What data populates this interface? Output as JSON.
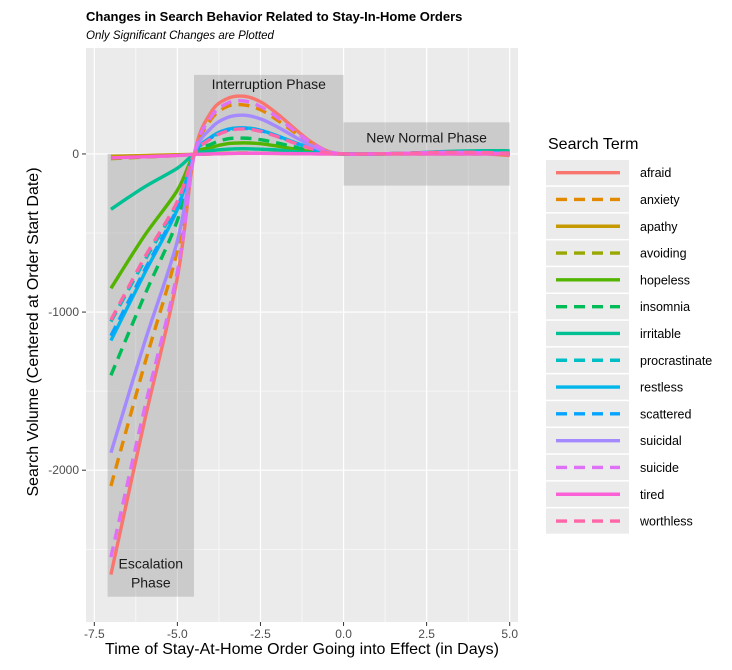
{
  "chart_data": {
    "type": "line",
    "title": "Changes in Search Behavior Related to Stay-In-Home Orders",
    "subtitle": "Only Significant Changes are Plotted",
    "xlabel": "Time of Stay-At-Home Order Going into Effect (in Days)",
    "ylabel": "Search Volume (Centered at Order Start Date)",
    "xlim": [
      -7.75,
      5.25
    ],
    "ylim": [
      -2960,
      670
    ],
    "x_ticks": [
      -7.5,
      -5.0,
      -2.5,
      0.0,
      2.5,
      5.0
    ],
    "x_tick_labels": [
      "-7.5",
      "-5.0",
      "-2.5",
      "0.0",
      "2.5",
      "5.0"
    ],
    "y_ticks": [
      -2000,
      -1000,
      0
    ],
    "y_tick_labels": [
      "-2000",
      "-1000",
      "0"
    ],
    "grid": true,
    "legend_title": "Search Term",
    "legend_position": "right",
    "phases": [
      {
        "label": "Escalation Phase",
        "label_lines": [
          "Escalation",
          "Phase"
        ],
        "x_range": [
          -7.1,
          -4.5
        ],
        "y_range": [
          -2800,
          0
        ]
      },
      {
        "label": "Interruption Phase",
        "label_lines": [
          "Interruption Phase"
        ],
        "x_range": [
          -4.5,
          0.0
        ],
        "y_range": [
          0,
          500
        ]
      },
      {
        "label": "New Normal Phase",
        "label_lines": [
          "New Normal Phase"
        ],
        "x_range": [
          0.0,
          5.0
        ],
        "y_range": [
          -200,
          200
        ]
      }
    ],
    "x": [
      -7,
      -6,
      -5,
      -4.5,
      -4,
      -3.5,
      -3,
      -2.5,
      -2,
      -1.5,
      -1,
      -0.5,
      0,
      1,
      2,
      3,
      4,
      5
    ],
    "series": [
      {
        "name": "afraid",
        "color": "#F8766D",
        "dash": "solid",
        "values": [
          -2660,
          -1700,
          -780,
          -10,
          260,
          350,
          365,
          330,
          255,
          165,
          80,
          20,
          0,
          0,
          5,
          10,
          5,
          -10
        ]
      },
      {
        "name": "anxiety",
        "color": "#E38900",
        "dash": "dashed",
        "values": [
          -2100,
          -1340,
          -610,
          -8,
          215,
          300,
          310,
          280,
          215,
          140,
          70,
          15,
          0,
          0,
          5,
          10,
          5,
          -5
        ]
      },
      {
        "name": "apathy",
        "color": "#C49A00",
        "dash": "solid",
        "values": [
          -15,
          -10,
          -5,
          -2,
          0,
          3,
          5,
          4,
          3,
          2,
          1,
          0,
          0,
          0,
          0,
          0,
          0,
          0
        ]
      },
      {
        "name": "avoiding",
        "color": "#99A800",
        "dash": "dashed",
        "values": [
          -30,
          -20,
          -10,
          -3,
          0,
          4,
          6,
          5,
          4,
          3,
          2,
          1,
          0,
          0,
          0,
          0,
          0,
          0
        ]
      },
      {
        "name": "hopeless",
        "color": "#53B400",
        "dash": "solid",
        "values": [
          -850,
          -520,
          -230,
          -5,
          40,
          65,
          70,
          65,
          50,
          32,
          15,
          4,
          0,
          0,
          5,
          10,
          5,
          0
        ]
      },
      {
        "name": "insomnia",
        "color": "#00BC56",
        "dash": "dashed",
        "values": [
          -1400,
          -900,
          -420,
          -8,
          60,
          95,
          100,
          90,
          70,
          45,
          22,
          5,
          0,
          0,
          5,
          10,
          5,
          0
        ]
      },
      {
        "name": "irritable",
        "color": "#00C094",
        "dash": "solid",
        "values": [
          -350,
          -210,
          -90,
          -3,
          20,
          30,
          33,
          30,
          25,
          15,
          8,
          2,
          0,
          0,
          5,
          15,
          20,
          20
        ]
      },
      {
        "name": "procrastinate",
        "color": "#00BFC4",
        "dash": "dashed",
        "values": [
          -1060,
          -680,
          -310,
          -6,
          100,
          150,
          165,
          150,
          115,
          75,
          38,
          9,
          0,
          0,
          5,
          10,
          10,
          5
        ]
      },
      {
        "name": "restless",
        "color": "#00B6EB",
        "dash": "solid",
        "values": [
          -1180,
          -760,
          -350,
          -6,
          105,
          155,
          165,
          150,
          115,
          75,
          38,
          9,
          0,
          0,
          5,
          10,
          10,
          5
        ]
      },
      {
        "name": "scattered",
        "color": "#06A4FF",
        "dash": "dashed",
        "values": [
          -1150,
          -740,
          -340,
          -6,
          100,
          150,
          162,
          148,
          112,
          72,
          36,
          8,
          0,
          0,
          5,
          10,
          10,
          5
        ]
      },
      {
        "name": "suicidal",
        "color": "#A58AFF",
        "dash": "solid",
        "values": [
          -1890,
          -1200,
          -550,
          -8,
          160,
          230,
          245,
          222,
          172,
          112,
          55,
          13,
          0,
          0,
          5,
          10,
          8,
          0
        ]
      },
      {
        "name": "suicide",
        "color": "#DF70F8",
        "dash": "dashed",
        "values": [
          -2550,
          -1620,
          -745,
          -10,
          230,
          320,
          335,
          300,
          232,
          150,
          74,
          18,
          0,
          0,
          5,
          10,
          8,
          0
        ]
      },
      {
        "name": "tired",
        "color": "#FB61D7",
        "dash": "solid",
        "values": [
          -25,
          -18,
          -10,
          -3,
          0,
          3,
          5,
          4,
          3,
          2,
          1,
          0,
          0,
          0,
          0,
          0,
          0,
          0
        ]
      },
      {
        "name": "worthless",
        "color": "#FF66A8",
        "dash": "dashed",
        "values": [
          -1050,
          -660,
          -300,
          -6,
          95,
          145,
          158,
          143,
          110,
          70,
          35,
          8,
          0,
          0,
          5,
          10,
          10,
          5
        ]
      }
    ]
  }
}
